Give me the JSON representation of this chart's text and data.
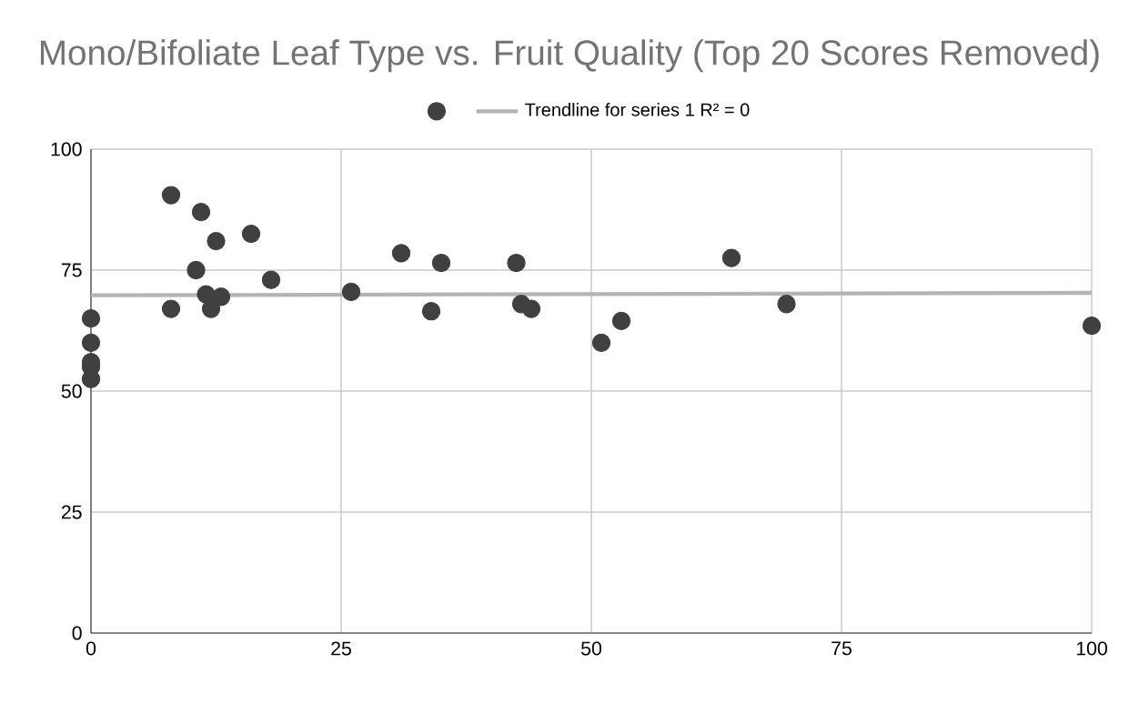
{
  "chart_data": {
    "type": "scatter",
    "title": "Mono/Bifoliate Leaf Type vs. Fruit Quality (Top 20 Scores Removed)",
    "series": [
      {
        "color": "#404040",
        "marker": "circle",
        "x": [
          0,
          0,
          0,
          0,
          0,
          8,
          8,
          11,
          10.5,
          11.5,
          12,
          12.5,
          13,
          16,
          18,
          26,
          31,
          34,
          35,
          42.5,
          43,
          44,
          51,
          53,
          64,
          69.5,
          100
        ],
        "values": [
          65,
          60,
          56,
          55,
          52.5,
          90.5,
          67,
          87,
          75,
          70,
          67,
          81,
          69.5,
          82.5,
          73,
          70.5,
          78.5,
          66.5,
          76.5,
          76.5,
          68,
          67,
          60,
          64.5,
          77.5,
          68,
          63.5
        ]
      },
      {
        "type": "line",
        "name": "Trendline for series 1 R² = 0",
        "color": "#b4b4b4",
        "x": [
          0,
          100
        ],
        "values": [
          69.8,
          70.3
        ]
      }
    ],
    "xlim": [
      0,
      100
    ],
    "ylim": [
      0,
      100
    ],
    "xticks": [
      0,
      25,
      50,
      75,
      100
    ],
    "yticks": [
      0,
      25,
      50,
      75,
      100
    ],
    "grid": true,
    "legend": "top",
    "line_style": "solid"
  }
}
